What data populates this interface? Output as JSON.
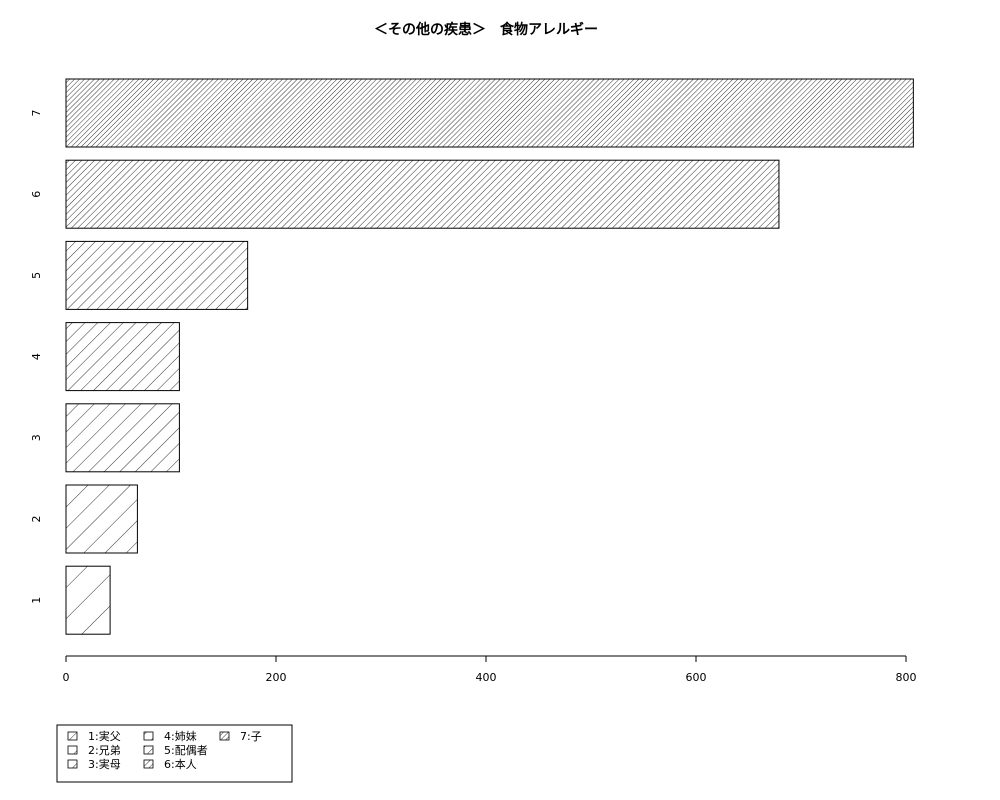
{
  "chart_data": {
    "type": "bar",
    "orientation": "horizontal",
    "title": "＜その他の疾患＞　食物アレルギー",
    "xlabel": "",
    "ylabel": "",
    "categories": [
      "1",
      "2",
      "3",
      "4",
      "5",
      "6",
      "7"
    ],
    "values": [
      42,
      68,
      108,
      108,
      173,
      679,
      807
    ],
    "xlim": [
      0,
      820
    ],
    "x_ticks": [
      0,
      200,
      400,
      600,
      800
    ],
    "grid": false,
    "bar_fill": "hatched",
    "legend_position": "bottom-left",
    "legend": [
      "1:実父",
      "2:兄弟",
      "3:実母",
      "4:姉妹",
      "5:配偶者",
      "6:本人",
      "7:子"
    ]
  }
}
